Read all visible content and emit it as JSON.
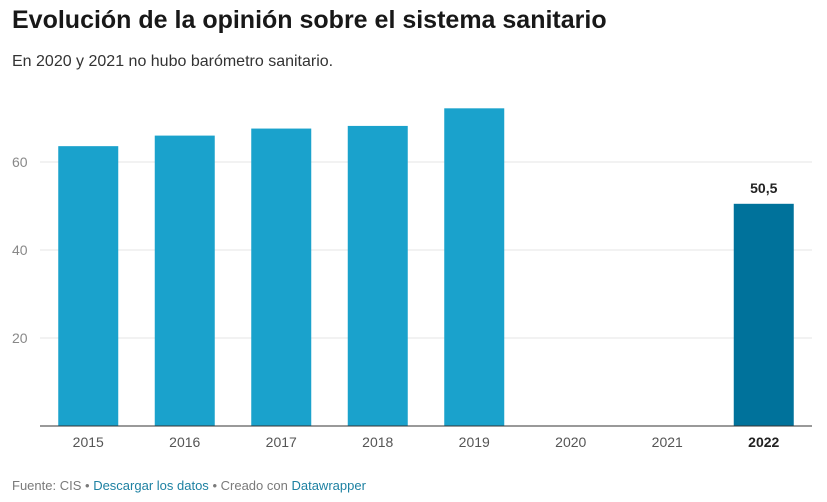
{
  "header": {
    "title": "Evolución de la opinión sobre el sistema sanitario",
    "subtitle": "En 2020 y 2021 no hubo barómetro sanitario."
  },
  "colors": {
    "bar": "#1aa2cc",
    "highlight_bar": "#00729b",
    "axis": "#333333",
    "grid": "#e5e5e5",
    "tick_text": "#888888",
    "link": "#1d81a2"
  },
  "chart_data": {
    "type": "bar",
    "title": "Evolución de la opinión sobre el sistema sanitario",
    "subtitle": "En 2020 y 2021 no hubo barómetro sanitario.",
    "categories": [
      "2015",
      "2016",
      "2017",
      "2018",
      "2019",
      "2020",
      "2021",
      "2022"
    ],
    "values": [
      63.6,
      66.0,
      67.6,
      68.2,
      72.2,
      null,
      null,
      50.5
    ],
    "highlight_category": "2022",
    "data_labels": [
      {
        "category": "2022",
        "label": "50,5"
      }
    ],
    "xlabel": "",
    "ylabel": "",
    "yticks": [
      20,
      40,
      60
    ],
    "ylim": [
      0,
      75
    ],
    "grid": true,
    "legend": "none"
  },
  "footer": {
    "source": "Fuente: CIS",
    "separator": "•",
    "download_label": "Descargar los datos",
    "created_with": "Creado con",
    "tool_label": "Datawrapper"
  }
}
